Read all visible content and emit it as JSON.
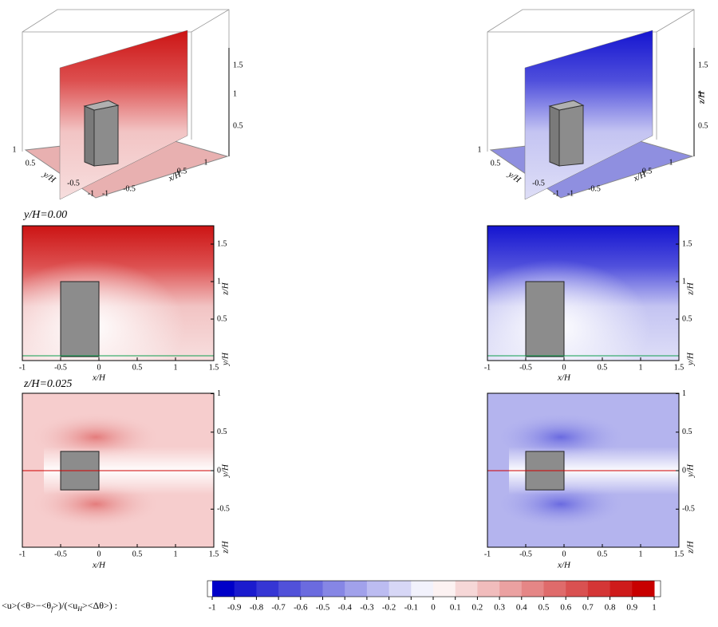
{
  "sections": [
    {
      "label": "y/H=0.00",
      "color": "#c00000"
    },
    {
      "label": "z/H=0.025",
      "color": "#10a050"
    }
  ],
  "axes3d": {
    "zticks": [
      0.5,
      1,
      1.5
    ],
    "yticks": [
      1,
      0.5,
      -0.5,
      -1
    ],
    "xticks": [
      -1,
      -0.5,
      0.5,
      1
    ],
    "xlabel": "x/H",
    "ylabel": "y/H",
    "zlabel": "z/H"
  },
  "plane_xz": {
    "xticks": [
      -1,
      -0.5,
      0,
      0.5,
      1,
      1.5
    ],
    "zticks": [
      0.5,
      1,
      1.5
    ],
    "xlabel": "x/H",
    "zlabel": "z/H",
    "ylabel": "y/H"
  },
  "plane_xy": {
    "xticks": [
      -1,
      -0.5,
      0,
      0.5,
      1,
      1.5
    ],
    "yticks": [
      -0.5,
      0,
      0.5,
      1
    ],
    "xlabel": "x/H",
    "ylabel": "y/H",
    "zlabel": "z/H"
  },
  "colorbar": {
    "label_parts": [
      "<u>(<θ>−<θ",
      "f",
      ">)/(<u",
      "H",
      "><Δθ>) :"
    ],
    "ticks": [
      -1,
      -0.9,
      -0.8,
      -0.7,
      -0.6,
      -0.5,
      -0.4,
      -0.3,
      -0.2,
      -0.1,
      0,
      0.1,
      0.2,
      0.3,
      0.4,
      0.5,
      0.6,
      0.7,
      0.8,
      0.9,
      1
    ],
    "low_color": "#0000c8",
    "high_color": "#c80000"
  }
}
